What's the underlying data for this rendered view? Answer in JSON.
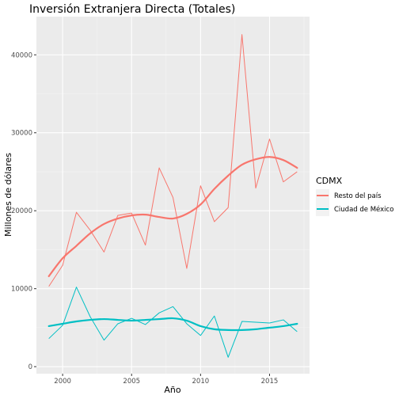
{
  "chart_data": {
    "type": "line",
    "title": "Inversión Extranjera Directa (Totales)",
    "xlabel": "Año",
    "ylabel": "Millones de dólares",
    "xlim": [
      1998.1,
      2017.9
    ],
    "ylim": [
      -900,
      44900
    ],
    "x_ticks": [
      2000,
      2005,
      2010,
      2015
    ],
    "x_tick_labels": [
      "2000",
      "2005",
      "2010",
      "2015"
    ],
    "y_ticks": [
      0,
      10000,
      20000,
      30000,
      40000
    ],
    "y_tick_labels": [
      "0",
      "10000",
      "20000",
      "30000",
      "40000"
    ],
    "grid": true,
    "legend": {
      "title": "CDMX",
      "position": "right"
    },
    "series": [
      {
        "name": "Resto del país",
        "color": "#f8766d",
        "x": [
          1999,
          2000,
          2001,
          2002,
          2003,
          2004,
          2005,
          2006,
          2007,
          2008,
          2009,
          2010,
          2011,
          2012,
          2013,
          2014,
          2015,
          2016,
          2017
        ],
        "values": [
          10300,
          13000,
          19800,
          17500,
          14700,
          19400,
          19700,
          15600,
          25500,
          21700,
          12600,
          23200,
          18600,
          20400,
          42600,
          22900,
          29200,
          23700,
          25000
        ],
        "smooth": [
          11600,
          13900,
          15500,
          17100,
          18300,
          19000,
          19400,
          19500,
          19200,
          19000,
          19600,
          20800,
          22800,
          24500,
          25900,
          26600,
          26900,
          26500,
          25500
        ]
      },
      {
        "name": "Ciudad de México",
        "color": "#00bfc4",
        "x": [
          1999,
          2000,
          2001,
          2002,
          2003,
          2004,
          2005,
          2006,
          2007,
          2008,
          2009,
          2010,
          2011,
          2012,
          2013,
          2014,
          2015,
          2016,
          2017
        ],
        "values": [
          3600,
          5300,
          10200,
          6400,
          3400,
          5500,
          6200,
          5400,
          6900,
          7700,
          5500,
          4000,
          6500,
          1200,
          5800,
          5700,
          5600,
          6000,
          4500
        ],
        "smooth": [
          5200,
          5500,
          5800,
          6000,
          6100,
          6000,
          5900,
          6000,
          6100,
          6200,
          5900,
          5200,
          4800,
          4700,
          4700,
          4800,
          5000,
          5200,
          5500
        ]
      }
    ]
  }
}
